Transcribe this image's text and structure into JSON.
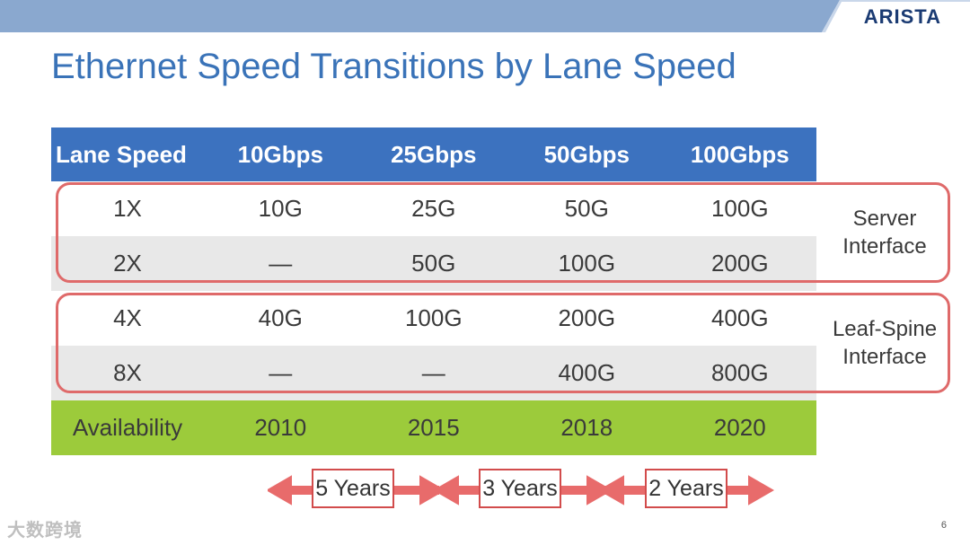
{
  "brand": {
    "logo_text": "ARISTA",
    "bar_color": "#8aa8cf",
    "bar_light": "#c9d7ea"
  },
  "title": "Ethernet Speed Transitions by Lane Speed",
  "table": {
    "headers": [
      "Lane Speed",
      "10Gbps",
      "25Gbps",
      "50Gbps",
      "100Gbps"
    ],
    "rows": [
      [
        "1X",
        "10G",
        "25G",
        "50G",
        "100G"
      ],
      [
        "2X",
        "—",
        "50G",
        "100G",
        "200G"
      ],
      [
        "4X",
        "40G",
        "100G",
        "200G",
        "400G"
      ],
      [
        "8X",
        "—",
        "—",
        "400G",
        "800G"
      ]
    ],
    "availability": [
      "Availability",
      "2010",
      "2015",
      "2018",
      "2020"
    ],
    "header_color": "#3c72bf",
    "availability_color": "#9ccb3b"
  },
  "groups": {
    "server": {
      "line1": "Server",
      "line2": "Interface"
    },
    "leaf_spine": {
      "line1": "Leaf-Spine",
      "line2": "Interface"
    }
  },
  "intervals": [
    "5 Years",
    "3 Years",
    "2 Years"
  ],
  "page_number": "6",
  "watermark": "大数跨境"
}
